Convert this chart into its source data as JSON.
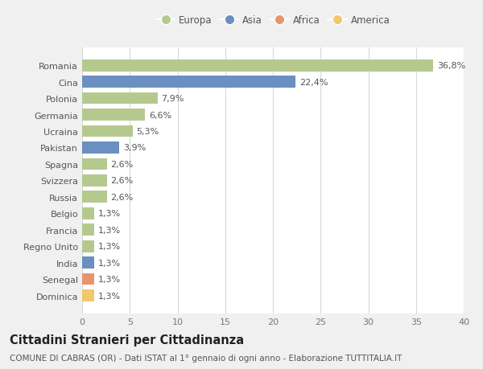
{
  "categories": [
    "Romania",
    "Cina",
    "Polonia",
    "Germania",
    "Ucraina",
    "Pakistan",
    "Spagna",
    "Svizzera",
    "Russia",
    "Belgio",
    "Francia",
    "Regno Unito",
    "India",
    "Senegal",
    "Dominica"
  ],
  "values": [
    36.8,
    22.4,
    7.9,
    6.6,
    5.3,
    3.9,
    2.6,
    2.6,
    2.6,
    1.3,
    1.3,
    1.3,
    1.3,
    1.3,
    1.3
  ],
  "labels": [
    "36,8%",
    "22,4%",
    "7,9%",
    "6,6%",
    "5,3%",
    "3,9%",
    "2,6%",
    "2,6%",
    "2,6%",
    "1,3%",
    "1,3%",
    "1,3%",
    "1,3%",
    "1,3%",
    "1,3%"
  ],
  "colors": [
    "#b5c98e",
    "#6a8fc0",
    "#b5c98e",
    "#b5c98e",
    "#b5c98e",
    "#6a8fc0",
    "#b5c98e",
    "#b5c98e",
    "#b5c98e",
    "#b5c98e",
    "#b5c98e",
    "#b5c98e",
    "#6a8fc0",
    "#e8956b",
    "#f0c96b"
  ],
  "legend_labels": [
    "Europa",
    "Asia",
    "Africa",
    "America"
  ],
  "legend_colors": [
    "#b5c98e",
    "#6a8fc0",
    "#e8956b",
    "#f0c96b"
  ],
  "title": "Cittadini Stranieri per Cittadinanza",
  "subtitle": "COMUNE DI CABRAS (OR) - Dati ISTAT al 1° gennaio di ogni anno - Elaborazione TUTTITALIA.IT",
  "xlim": [
    0,
    40
  ],
  "xticks": [
    0,
    5,
    10,
    15,
    20,
    25,
    30,
    35,
    40
  ],
  "bg_color": "#f0f0f0",
  "plot_bg_color": "#ffffff",
  "grid_color": "#d8d8d8",
  "bar_height": 0.72,
  "label_fontsize": 8,
  "tick_fontsize": 8,
  "title_fontsize": 10.5,
  "subtitle_fontsize": 7.5
}
